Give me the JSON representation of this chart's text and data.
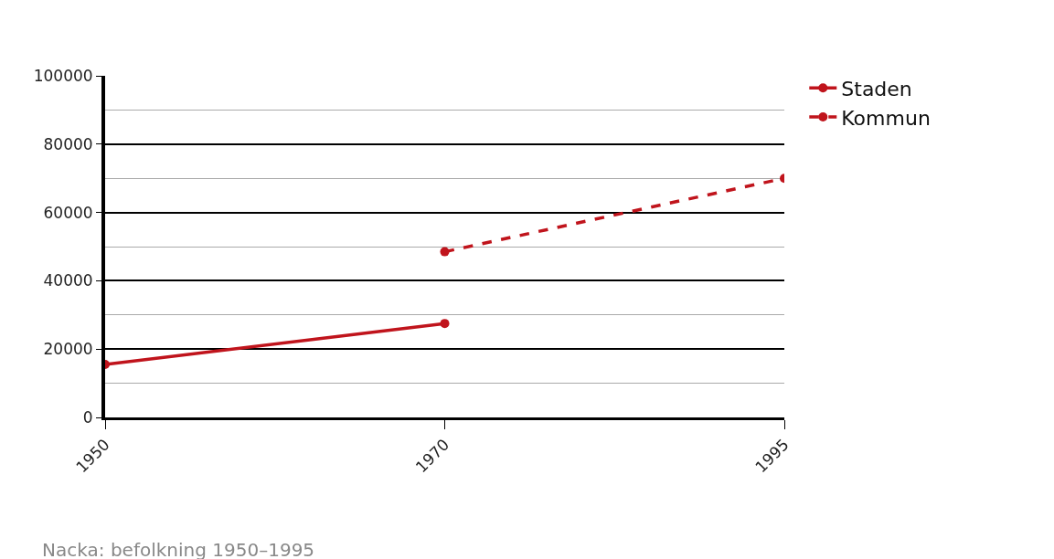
{
  "chart_data": {
    "type": "line",
    "title": "Nacka: befolkning 1950–1995",
    "categories": [
      "1950",
      "1970",
      "1995"
    ],
    "series": [
      {
        "name": "Staden",
        "color": "#c0141c",
        "values": [
          15500,
          27500,
          null
        ],
        "line_style": "solid"
      },
      {
        "name": "Kommun",
        "color": "#c0141c",
        "values": [
          null,
          48500,
          70000
        ],
        "line_style": "dashed"
      }
    ],
    "ylim": [
      0,
      100000
    ],
    "yticks": [
      0,
      20000,
      40000,
      60000,
      80000,
      100000
    ],
    "grid": "y",
    "legend": "top right",
    "marker": "circle"
  }
}
